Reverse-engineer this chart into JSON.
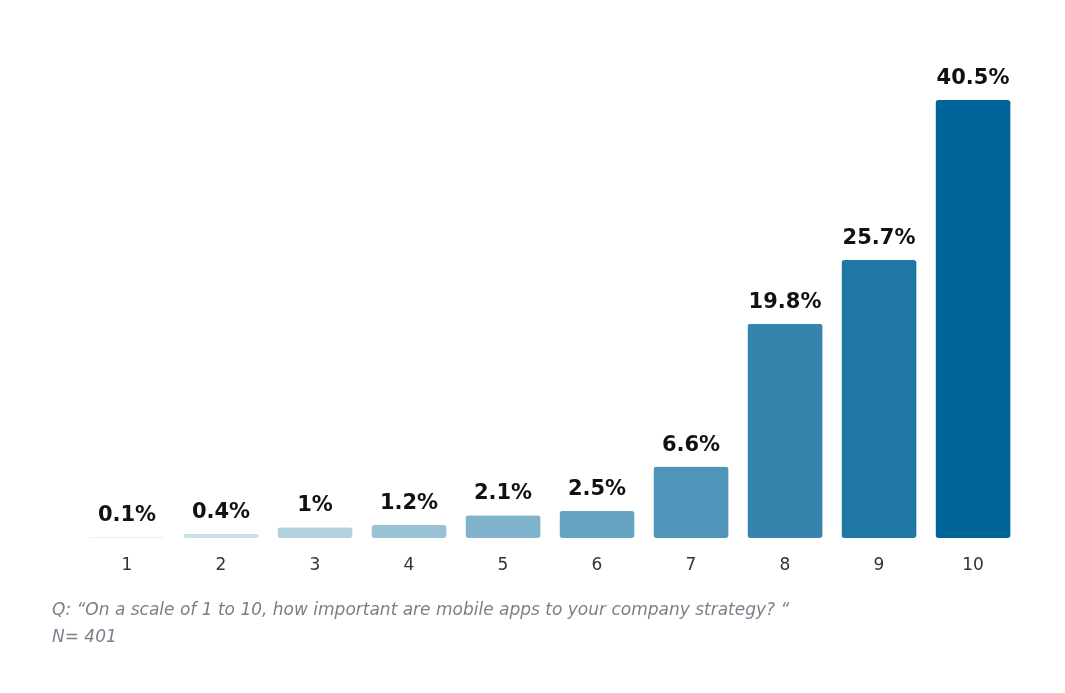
{
  "chart_data": {
    "type": "bar",
    "categories": [
      "1",
      "2",
      "3",
      "4",
      "5",
      "6",
      "7",
      "8",
      "9",
      "10"
    ],
    "values": [
      0.1,
      0.4,
      1,
      1.2,
      2.1,
      2.5,
      6.6,
      19.8,
      25.7,
      40.5
    ],
    "colors": [
      "#e6eff4",
      "#c9dfea",
      "#b3d0e0",
      "#9ac2d6",
      "#80b3cc",
      "#66a4c2",
      "#4f95b9",
      "#3584ae",
      "#1f77a4",
      "#006699"
    ],
    "value_labels": [
      "0.1%",
      "0.4%",
      "1%",
      "1.2%",
      "2.1%",
      "2.5%",
      "6.6%",
      "19.8%",
      "25.7%",
      "40.5%"
    ],
    "annotations": [
      "Q: “On a scale of 1 to 10, how important are mobile apps to your company strategy? “",
      "N= 401"
    ]
  }
}
